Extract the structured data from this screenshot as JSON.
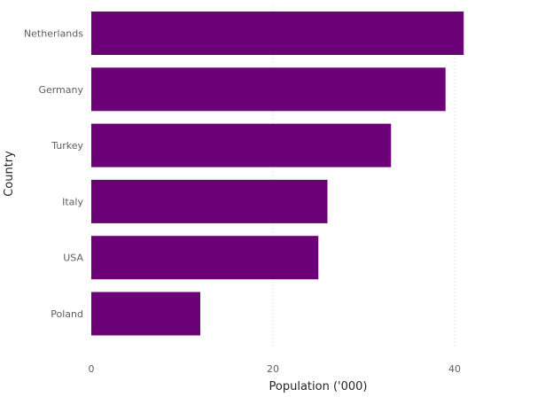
{
  "chart_data": {
    "type": "bar",
    "orientation": "horizontal",
    "categories": [
      "Netherlands",
      "Germany",
      "Turkey",
      "Italy",
      "USA",
      "Poland"
    ],
    "values": [
      41,
      39,
      33,
      26,
      25,
      12
    ],
    "xlabel": "Population ('000)",
    "ylabel": "Country",
    "xticks": [
      0,
      20,
      40
    ],
    "xlim": [
      0,
      48
    ],
    "grid": true,
    "bar_color": "#6b0077"
  }
}
